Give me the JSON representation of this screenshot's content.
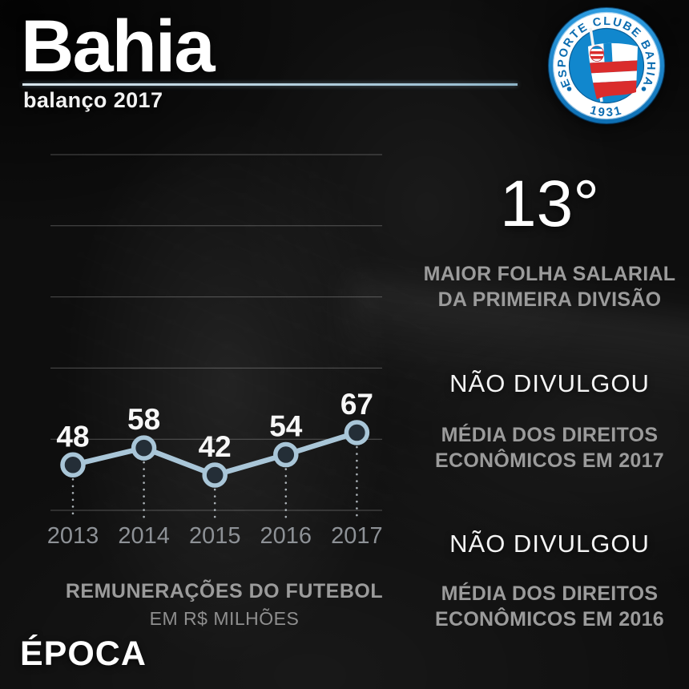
{
  "header": {
    "title": "Bahia",
    "subtitle": "balanço 2017"
  },
  "club_badge": {
    "alt": "Esporte Clube Bahia crest",
    "ring_text": "ESPORTE CLUBE BAHIA",
    "founded": "1931",
    "colors": {
      "blue": "#1187cd",
      "dark_blue": "#0a5f9a",
      "red": "#da2c2c",
      "white": "#ffffff"
    }
  },
  "chart_data": {
    "type": "line",
    "title": "REMUNERAÇÕES DO FUTEBOL",
    "unit_label": "EM R$ MILHÕES",
    "x": [
      "2013",
      "2014",
      "2015",
      "2016",
      "2017"
    ],
    "values": [
      48,
      58,
      42,
      54,
      67
    ],
    "ylim": [
      20,
      90
    ],
    "grid": true,
    "gridline_count": 6,
    "legend": "none",
    "line_color": "#a9c6d8",
    "point_fill_color": "#242e37",
    "value_label_color": "#f7f7f7",
    "axis_label_color": "#8d9196",
    "gridline_color": "rgba(255,255,255,0.27)",
    "dropline_color": "#a9b0b5"
  },
  "stats": {
    "rank": {
      "value": "13°",
      "label_lines": [
        "MAIOR FOLHA SALARIAL",
        "DA PRIMEIRA DIVISÃO"
      ]
    },
    "rights_2017": {
      "value": "NÃO DIVULGOU",
      "label_lines": [
        "MÉDIA DOS DIREITOS",
        "ECONÔMICOS EM 2017"
      ]
    },
    "rights_2016": {
      "value": "NÃO DIVULGOU",
      "label_lines": [
        "MÉDIA DOS DIREITOS",
        "ECONÔMICOS EM 2016"
      ]
    }
  },
  "footer": {
    "brand": "ÉPOCA"
  }
}
